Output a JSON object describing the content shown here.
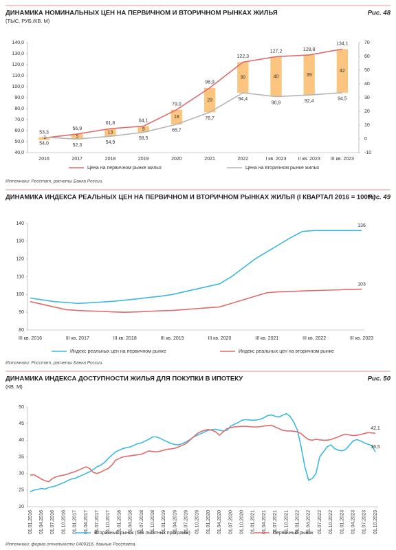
{
  "chart_data": [
    {
      "type": "combo",
      "title": "ДИНАМИКА НОМИНАЛЬНЫХ ЦЕН НА ПЕРВИЧНОМ И ВТОРИЧНОМ РЫНКАХ ЖИЛЬЯ",
      "figure": "Рис. 48",
      "subtitle": "(ТЫС. РУБ./КВ. М)",
      "categories": [
        "2016",
        "2017",
        "2018",
        "2019",
        "2020",
        "2021",
        "2022",
        "I кв. 2023",
        "II кв. 2023",
        "III кв. 2023"
      ],
      "series": [
        {
          "name": "Цена на первичном рынке жилья",
          "color": "#e06a6a",
          "values": [
            53.3,
            56.9,
            61.8,
            64.1,
            79.0,
            98.9,
            122.3,
            127.2,
            128.8,
            134.1
          ],
          "value_labels": [
            "53,3",
            "56,9",
            "61,8",
            "64,1",
            "79,0",
            "98,9",
            "122,3",
            "127,2",
            "128,8",
            "134,1"
          ]
        },
        {
          "name": "Цена на вторичном рынке жилья",
          "color": "#b5b5b5",
          "values": [
            54.0,
            52.3,
            54.9,
            58.5,
            65.7,
            76.7,
            94.4,
            90.9,
            92.4,
            94.5
          ],
          "value_labels": [
            "54,0",
            "52,3",
            "54,9",
            "58,5",
            "65,7",
            "76,7",
            "94,4",
            "90,9",
            "92,4",
            "94,5"
          ]
        }
      ],
      "bars": {
        "color": "#fcc57f",
        "values": [
          -1,
          5,
          13,
          9,
          18,
          29,
          30,
          40,
          39,
          42
        ]
      },
      "ylim": [
        40,
        140
      ],
      "yticks": [
        {
          "value": 40,
          "label": "40,0"
        },
        {
          "value": 50,
          "label": "50,0"
        },
        {
          "value": 60,
          "label": "60,0"
        },
        {
          "value": 70,
          "label": "70,0"
        },
        {
          "value": 80,
          "label": "80,0"
        },
        {
          "value": 90,
          "label": "90,0"
        },
        {
          "value": 100,
          "label": "100,0"
        },
        {
          "value": 110,
          "label": "110,0"
        },
        {
          "value": 120,
          "label": "120,0"
        },
        {
          "value": 130,
          "label": "130,0"
        },
        {
          "value": 140,
          "label": "140,0"
        }
      ],
      "y2lim": [
        -10,
        70
      ],
      "y2ticks": [
        -10,
        0,
        10,
        20,
        30,
        40,
        50,
        60,
        70
      ],
      "grid": false,
      "source": "Источники: Росстат, расчеты Банка России."
    },
    {
      "type": "line",
      "title": "ДИНАМИКА ИНДЕКСА РЕАЛЬНЫХ ЦЕН НА ПЕРВИЧНОМ И ВТОРИЧНОМ РЫНКАХ ЖИЛЬЯ (I КВАРТАЛ 2016 = 100%)",
      "figure": "Рис. 49",
      "categories": [
        "III кв. 2016",
        null,
        null,
        null,
        "III кв. 2017",
        null,
        null,
        null,
        "III кв. 2018",
        null,
        null,
        null,
        "III кв. 2019",
        null,
        null,
        null,
        "III кв. 2020",
        null,
        null,
        null,
        "III кв. 2021",
        null,
        null,
        null,
        "III кв. 2022",
        null,
        null,
        null,
        "III кв. 2023"
      ],
      "series": [
        {
          "name": "Индекс реальных цен на первичном рынке",
          "color": "#3bb8dc",
          "values": [
            98,
            97,
            96,
            95.5,
            95,
            95.3,
            95.7,
            96.2,
            96.8,
            97.5,
            98.3,
            99,
            100,
            101.5,
            103,
            104.5,
            106,
            110,
            115,
            120,
            124,
            128,
            132,
            135.5,
            136,
            136,
            136,
            136,
            136
          ],
          "end_label": true
        },
        {
          "name": "Индекс реальных цен на вторичном рынке",
          "color": "#e06a6a",
          "values": [
            96,
            94.5,
            93,
            91.5,
            91,
            90.7,
            90.5,
            90.2,
            90,
            90.2,
            90.5,
            90.8,
            91,
            91.5,
            92,
            92.5,
            93,
            95,
            97,
            99,
            101,
            101.5,
            101.7,
            102,
            102.2,
            102.4,
            102.6,
            102.8,
            103
          ],
          "end_label": true
        }
      ],
      "ylim": [
        80,
        140
      ],
      "yticks": [
        80,
        90,
        100,
        110,
        120,
        130,
        140
      ],
      "grid": false,
      "source": "Источники: Росстат, расчеты Банка России."
    },
    {
      "type": "line",
      "title": "ДИНАМИКА ИНДЕКСА ДОСТУПНОСТИ ЖИЛЬЯ ДЛЯ ПОКУПКИ В ИПОТЕКУ",
      "figure": "Рис. 50",
      "subtitle": "(КВ. М)",
      "categories": [
        "01.01.2016",
        null,
        null,
        "01.04.2016",
        null,
        null,
        "01.07.2016",
        null,
        null,
        "01.10.2016",
        null,
        null,
        "01.01.2017",
        null,
        null,
        "01.04.2017",
        null,
        null,
        "01.07.2017",
        null,
        null,
        "01.10.2017",
        null,
        null,
        "01.01.2018",
        null,
        null,
        "01.04.2018",
        null,
        null,
        "01.07.2018",
        null,
        null,
        "01.10.2018",
        null,
        null,
        "01.01.2019",
        null,
        null,
        "01.04.2019",
        null,
        null,
        "01.07.2019",
        null,
        null,
        "01.10.2019",
        null,
        null,
        "01.01.2020",
        null,
        null,
        "01.04.2020",
        null,
        null,
        "01.07.2020",
        null,
        null,
        "01.10.2020",
        null,
        null,
        "01.01.2021",
        null,
        null,
        "01.04.2021",
        null,
        null,
        "01.07.2021",
        null,
        null,
        "01.10.2021",
        null,
        null,
        "01.01.2022",
        null,
        null,
        "01.04.2022",
        null,
        null,
        "01.07.2022",
        null,
        null,
        "01.10.2022",
        null,
        null,
        "01.01.2023",
        null,
        null,
        "01.04.2023",
        null,
        null,
        "01.07.2023",
        null,
        null,
        "01.10.2023"
      ],
      "series": [
        {
          "name": "Вторичный рынок (без льготных программ)",
          "color": "#3bb8dc",
          "values": [
            24.5,
            25,
            25.2,
            25.5,
            25.3,
            25.8,
            26,
            26.3,
            26.8,
            27.2,
            27.8,
            28.3,
            28.5,
            29,
            29.5,
            30,
            30.5,
            31.2,
            32,
            32.5,
            33.3,
            34.5,
            35.5,
            36.5,
            37,
            37.5,
            37.8,
            38,
            38.5,
            39,
            39.2,
            39.8,
            40.3,
            41,
            41,
            40.6,
            40,
            39.5,
            39,
            38.7,
            38.6,
            39,
            39.5,
            40.2,
            41,
            41.5,
            42,
            42.5,
            43,
            43.2,
            43.3,
            43,
            42.8,
            43,
            44.2,
            44.8,
            45.3,
            46,
            46.2,
            46.1,
            46,
            46.1,
            46.3,
            46.8,
            47.4,
            47.6,
            47.2,
            47,
            47.5,
            48,
            47.2,
            45.5,
            43,
            38,
            32,
            28,
            28.5,
            30,
            35,
            36.5,
            38,
            38.6,
            37.5,
            37,
            36.8,
            37.2,
            38.5,
            39.8,
            40.2,
            39.8,
            39.2,
            38.8,
            38.4,
            36.5
          ],
          "value_labels": [
            null,
            null,
            null,
            null,
            null,
            null,
            null,
            null,
            null,
            null,
            null,
            null,
            null,
            null,
            null,
            null,
            null,
            null,
            null,
            null,
            null,
            null,
            null,
            null,
            null,
            null,
            null,
            null,
            null,
            null,
            null,
            null,
            null,
            null,
            null,
            null,
            null,
            null,
            null,
            null,
            null,
            null,
            null,
            null,
            null,
            null,
            null,
            null,
            null,
            null,
            null,
            null,
            null,
            null,
            null,
            null,
            null,
            null,
            null,
            null,
            null,
            null,
            null,
            null,
            null,
            null,
            null,
            null,
            null,
            null,
            null,
            null,
            null,
            null,
            null,
            null,
            null,
            null,
            null,
            null,
            null,
            null,
            null,
            null,
            null,
            null,
            null,
            null,
            null,
            null,
            null,
            null,
            null,
            "36,5"
          ]
        },
        {
          "name": "Первичный рынок",
          "color": "#e06a6a",
          "values": [
            29.5,
            29.6,
            29,
            28.3,
            27.8,
            27.5,
            28.5,
            29,
            29.3,
            29.5,
            29.8,
            30.2,
            30.5,
            31,
            31.5,
            32,
            31.5,
            30.3,
            30,
            30.4,
            31,
            31.5,
            32.5,
            34,
            34.5,
            35,
            35.2,
            35.3,
            35.5,
            35.6,
            35.8,
            36.3,
            36.8,
            36.6,
            36.5,
            36.7,
            37,
            37.3,
            37.4,
            37.6,
            38,
            38.5,
            39,
            40,
            41,
            42,
            42.6,
            43,
            43.2,
            43,
            42.5,
            41.5,
            42.5,
            43.5,
            43.8,
            44,
            44.1,
            44.2,
            44.2,
            44.1,
            44,
            44,
            44.1,
            44.3,
            44.4,
            44.5,
            44,
            43.5,
            43,
            42.8,
            42.8,
            42.7,
            42.5,
            42,
            41,
            40.2,
            40,
            40.3,
            40.1,
            40,
            40,
            40.2,
            40.6,
            41,
            41.5,
            41.8,
            41.6,
            41.4,
            41.5,
            41.7,
            42,
            42.3,
            42.2,
            42.1
          ],
          "value_labels": [
            null,
            null,
            null,
            null,
            null,
            null,
            null,
            null,
            null,
            null,
            null,
            null,
            null,
            null,
            null,
            null,
            null,
            null,
            null,
            null,
            null,
            null,
            null,
            null,
            null,
            null,
            null,
            null,
            null,
            null,
            null,
            null,
            null,
            null,
            null,
            null,
            null,
            null,
            null,
            null,
            null,
            null,
            null,
            null,
            null,
            null,
            null,
            null,
            null,
            null,
            null,
            null,
            null,
            null,
            null,
            null,
            null,
            null,
            null,
            null,
            null,
            null,
            null,
            null,
            null,
            null,
            null,
            null,
            null,
            null,
            null,
            null,
            null,
            null,
            null,
            null,
            null,
            null,
            null,
            null,
            null,
            null,
            null,
            null,
            null,
            null,
            null,
            null,
            null,
            null,
            null,
            null,
            null,
            "42,1"
          ]
        }
      ],
      "ylim": [
        20,
        50
      ],
      "yticks": [
        20,
        25,
        30,
        35,
        40,
        45,
        50
      ],
      "grid": false,
      "source": "Источники: форма отчетности 0409316, данные Росстата."
    }
  ]
}
